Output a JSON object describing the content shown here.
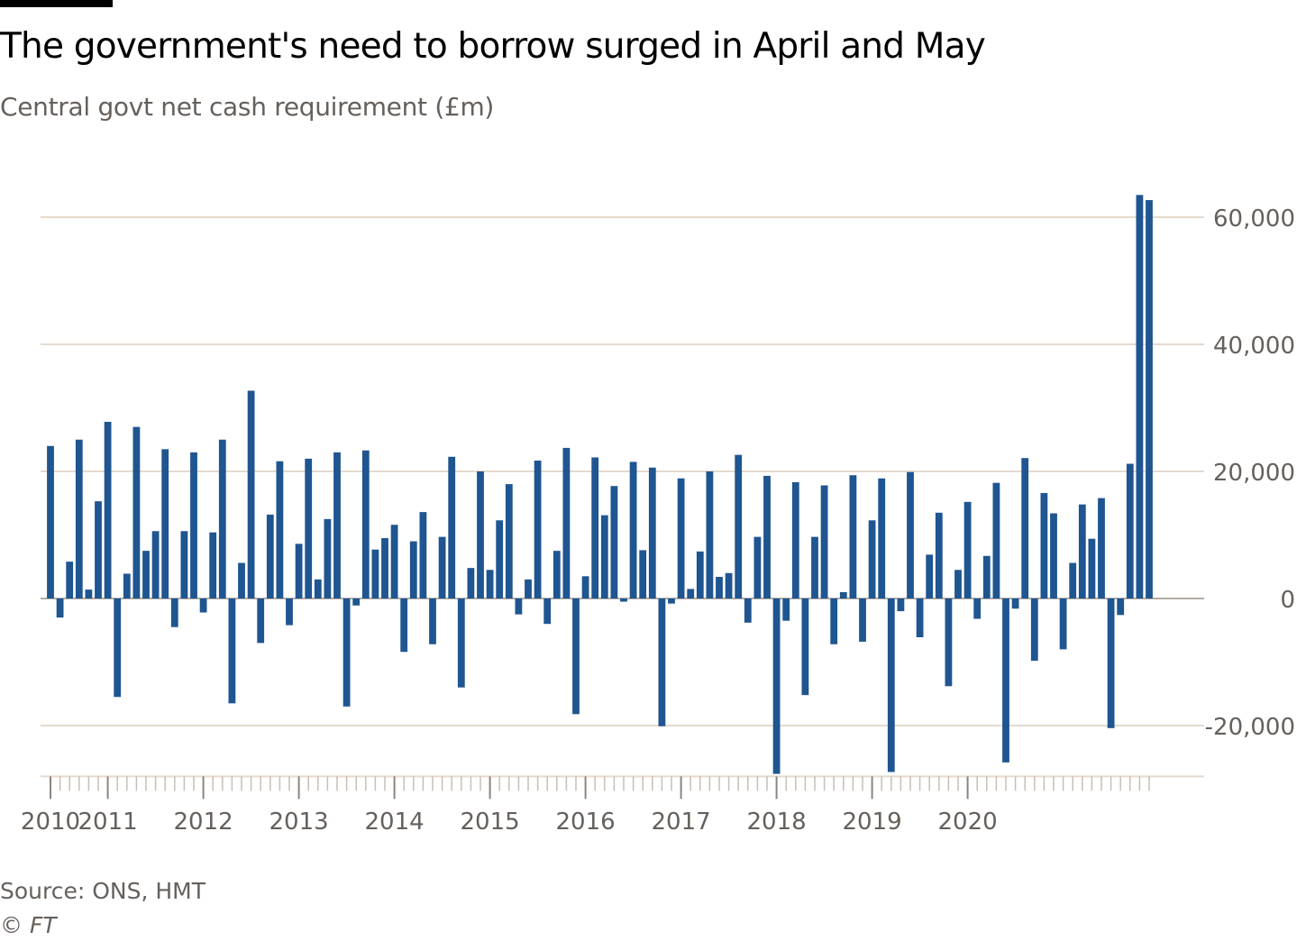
{
  "title": "The government's need to borrow surged in April and May",
  "subtitle": "Central govt net cash requirement (£m)",
  "source": "Source: ONS, HMT",
  "credit": {
    "symbol": "©",
    "brand": "FT"
  },
  "colors": {
    "bar": "#1f5590",
    "grid": "#e6d9ce",
    "axis_text": "#66605c",
    "zero_line": "#b3aca4"
  },
  "chart_data": {
    "type": "bar",
    "title": "The government's need to borrow surged in April and May",
    "subtitle": "Central govt net cash requirement (£m)",
    "xlabel": "",
    "ylabel": "",
    "ylim": [
      -28000,
      64000
    ],
    "yticks": [
      60000,
      40000,
      20000,
      0,
      -20000
    ],
    "ytick_labels": [
      "60,000",
      "40,000",
      "20,000",
      "0",
      "-20,000"
    ],
    "y_axis_side": "right",
    "grid": true,
    "x_start": "2010-01",
    "x_frequency": "monthly",
    "xtick_labels": [
      {
        "label": "2010",
        "month_index": 0
      },
      {
        "label": "2011",
        "month_index": 6
      },
      {
        "label": "2012",
        "month_index": 16
      },
      {
        "label": "2013",
        "month_index": 26
      },
      {
        "label": "2014",
        "month_index": 36
      },
      {
        "label": "2015",
        "month_index": 46
      },
      {
        "label": "2016",
        "month_index": 56
      },
      {
        "label": "2017",
        "month_index": 66
      },
      {
        "label": "2018",
        "month_index": 76
      },
      {
        "label": "2019",
        "month_index": 86
      },
      {
        "label": "2020",
        "month_index": 96
      }
    ],
    "series": [
      {
        "name": "Central govt net cash requirement",
        "values": [
          24000,
          -3000,
          5800,
          25000,
          1400,
          15300,
          27800,
          -15500,
          3900,
          27000,
          7500,
          10600,
          23500,
          -4500,
          10600,
          23000,
          -2200,
          10400,
          25000,
          -16500,
          5600,
          32700,
          -7000,
          13200,
          21600,
          -4200,
          8600,
          22000,
          3000,
          12500,
          23000,
          -17000,
          -1100,
          23300,
          7700,
          9500,
          11600,
          -8400,
          9000,
          13600,
          -7200,
          9700,
          22300,
          -14000,
          4800,
          20000,
          4500,
          12300,
          18000,
          -2500,
          3000,
          21700,
          -4000,
          7500,
          23700,
          -18200,
          3500,
          22200,
          13100,
          17700,
          -500,
          21500,
          7600,
          20600,
          -20100,
          -800,
          18900,
          1500,
          7400,
          20000,
          3400,
          4000,
          22600,
          -3800,
          9700,
          19300,
          -27600,
          -3500,
          18300,
          -15200,
          9700,
          17800,
          -7200,
          1000,
          19400,
          -6800,
          12300,
          18900,
          -27300,
          -2000,
          19900,
          -6100,
          6900,
          13500,
          -13800,
          4500,
          15200,
          -3200,
          6700,
          18200,
          -25800,
          -1600,
          22100,
          -9800,
          16600,
          13400,
          -8000,
          5600,
          14800,
          9400,
          15800,
          -20400,
          -2600,
          21200,
          63500,
          62700
        ]
      }
    ]
  }
}
